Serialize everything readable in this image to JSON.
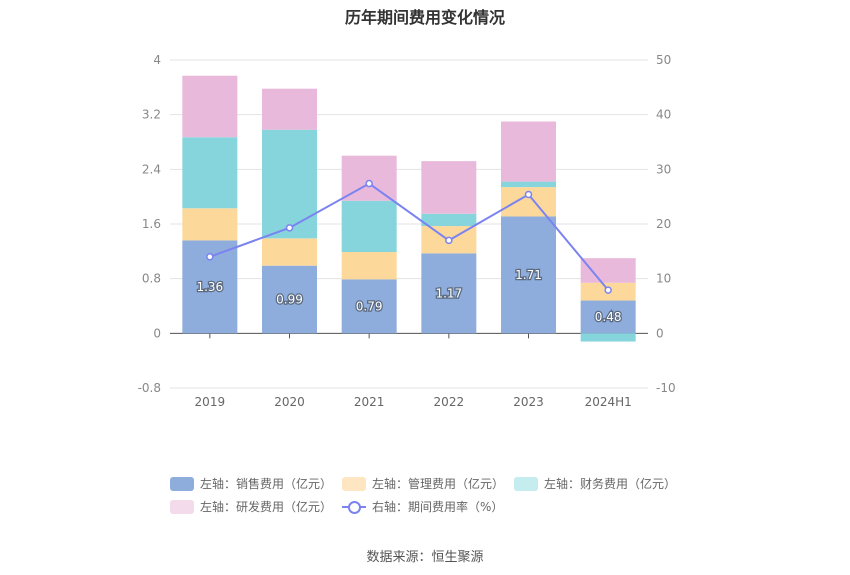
{
  "title": "历年期间费用变化情况",
  "source": "数据来源：恒生聚源",
  "colors": {
    "sales": "#8eaddc",
    "admin": "#fcd99b",
    "finance": "#86d5dc",
    "rnd": "#e8b9da",
    "rate": "#7b83f0",
    "legend_admin": "#fde6c1",
    "legend_finance": "#c5ecef",
    "legend_rnd": "#f4dbec"
  },
  "legend": {
    "sales": "左轴：销售费用（亿元）",
    "admin": "左轴：管理费用（亿元）",
    "finance": "左轴：财务费用（亿元）",
    "rnd": "左轴：研发费用（亿元）",
    "rate": "右轴：期间费用率（%）"
  },
  "chart_data": {
    "type": "bar",
    "stacked": true,
    "categories": [
      "2019",
      "2020",
      "2021",
      "2022",
      "2023",
      "2024H1"
    ],
    "series": [
      {
        "name": "左轴：销售费用（亿元）",
        "axis": "left",
        "values": [
          1.36,
          0.99,
          0.79,
          1.17,
          1.71,
          0.48
        ],
        "data_labels": [
          "1.36",
          "0.99",
          "0.79",
          "1.17",
          "1.71",
          "0.48"
        ]
      },
      {
        "name": "左轴：管理费用（亿元）",
        "axis": "left",
        "values": [
          0.47,
          0.4,
          0.4,
          0.4,
          0.43,
          0.26
        ]
      },
      {
        "name": "左轴：财务费用（亿元）",
        "axis": "left",
        "values": [
          1.04,
          1.59,
          0.75,
          0.18,
          0.08,
          -0.12
        ]
      },
      {
        "name": "左轴：研发费用（亿元）",
        "axis": "left",
        "values": [
          0.9,
          0.6,
          0.66,
          0.77,
          0.88,
          0.36
        ]
      },
      {
        "name": "右轴：期间费用率（%）",
        "axis": "right",
        "type": "line",
        "values": [
          14.0,
          19.3,
          27.4,
          17.0,
          25.4,
          7.9
        ]
      }
    ],
    "y_left": {
      "min": -0.8,
      "max": 4,
      "ticks": [
        "-0.8",
        "0",
        "0.8",
        "1.6",
        "2.4",
        "3.2",
        "4"
      ]
    },
    "y_right": {
      "min": -10,
      "max": 50,
      "ticks": [
        "-10",
        "0",
        "10",
        "20",
        "30",
        "40",
        "50"
      ]
    },
    "grid": true,
    "legend_position": "bottom"
  }
}
